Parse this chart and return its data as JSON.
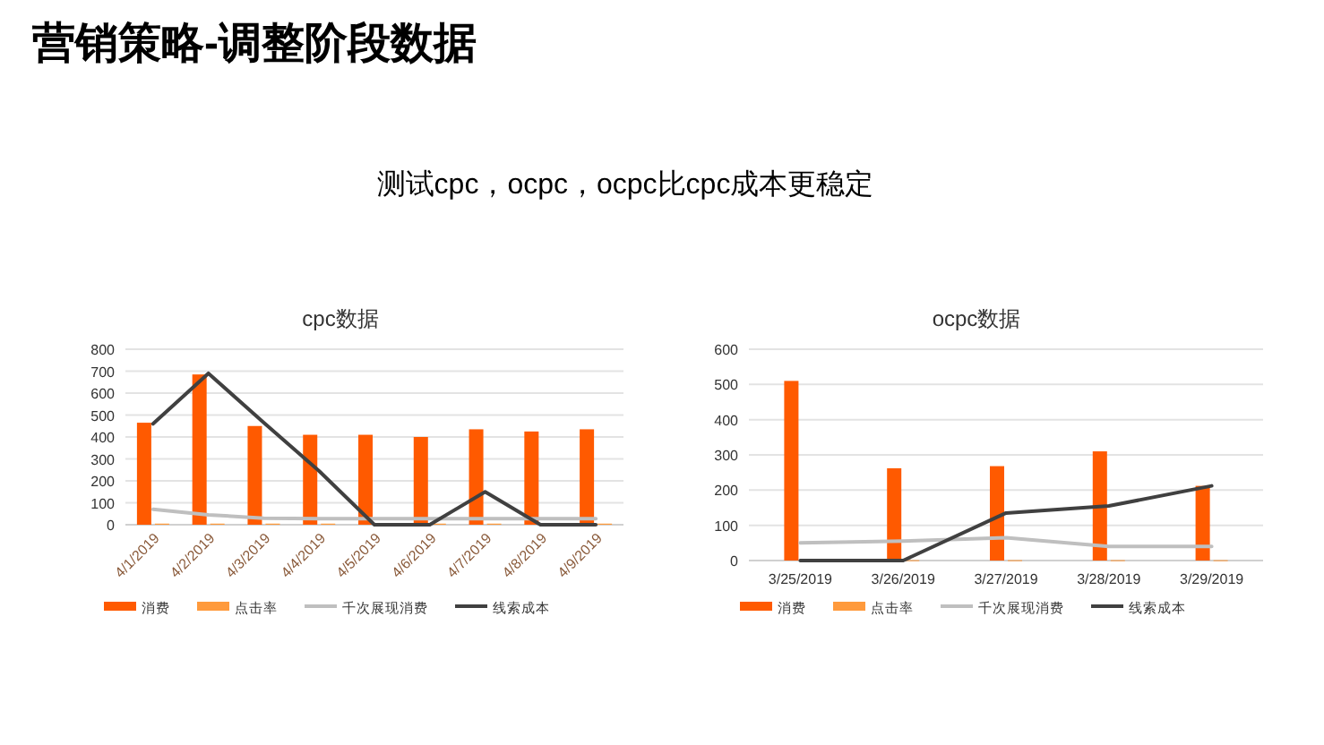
{
  "chart_data": [
    {
      "type": "other",
      "title": "营销策略-调整阶段数据",
      "subtitle": "测试cpc，ocpc，ocpc比cpc成本更稳定"
    },
    {
      "type": "bar",
      "title": "cpc数据",
      "categories": [
        "4/1/2019",
        "4/2/2019",
        "4/3/2019",
        "4/4/2019",
        "4/5/2019",
        "4/6/2019",
        "4/7/2019",
        "4/8/2019",
        "4/9/2019"
      ],
      "series": [
        {
          "name": "消费",
          "type": "bar",
          "color": "#ff5a00",
          "values": [
            465,
            685,
            450,
            410,
            410,
            400,
            435,
            425,
            435
          ]
        },
        {
          "name": "点击率",
          "type": "bar",
          "color": "#ff9a3c",
          "values": [
            5,
            5,
            5,
            5,
            5,
            5,
            5,
            5,
            5
          ]
        },
        {
          "name": "千次展现消费",
          "type": "line",
          "color": "#bfbfbf",
          "values": [
            70,
            45,
            30,
            28,
            28,
            28,
            28,
            28,
            28
          ]
        },
        {
          "name": "线索成本",
          "type": "line",
          "color": "#404040",
          "values": [
            460,
            690,
            465,
            245,
            0,
            0,
            150,
            0,
            0
          ]
        }
      ],
      "ylim": [
        0,
        800
      ],
      "yticks": [
        0,
        100,
        200,
        300,
        400,
        500,
        600,
        700,
        800
      ],
      "grid": "y",
      "legend": "bottom"
    },
    {
      "type": "bar",
      "title": "ocpc数据",
      "categories": [
        "3/25/2019",
        "3/26/2019",
        "3/27/2019",
        "3/28/2019",
        "3/29/2019"
      ],
      "series": [
        {
          "name": "消费",
          "type": "bar",
          "color": "#ff5a00",
          "values": [
            510,
            262,
            268,
            310,
            212
          ]
        },
        {
          "name": "点击率",
          "type": "bar",
          "color": "#ff9a3c",
          "values": [
            1,
            1,
            1,
            1,
            1
          ]
        },
        {
          "name": "千次展现消费",
          "type": "line",
          "color": "#bfbfbf",
          "values": [
            50,
            55,
            65,
            40,
            40
          ]
        },
        {
          "name": "线索成本",
          "type": "line",
          "color": "#404040",
          "values": [
            0,
            0,
            135,
            155,
            212
          ]
        }
      ],
      "ylim": [
        0,
        600
      ],
      "yticks": [
        0,
        100,
        200,
        300,
        400,
        500,
        600
      ],
      "grid": "y",
      "legend": "bottom"
    }
  ]
}
